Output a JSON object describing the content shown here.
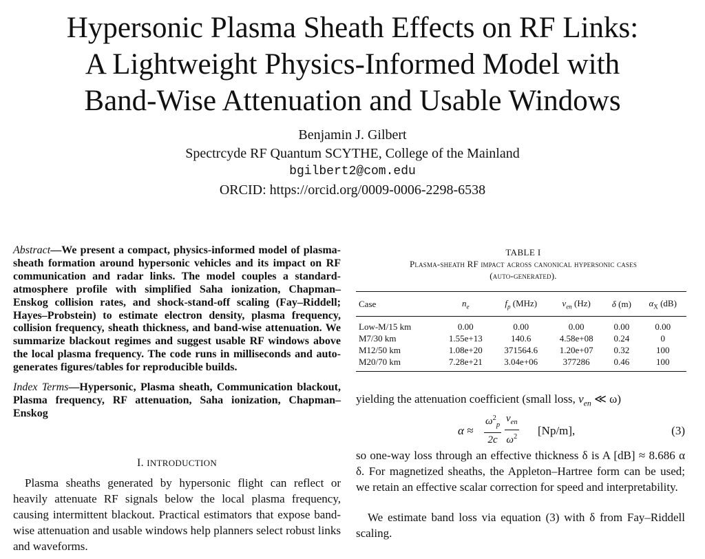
{
  "paper": {
    "title_lines": [
      "Hypersonic Plasma Sheath Effects on RF Links:",
      "A Lightweight Physics-Informed Model with",
      "Band-Wise Attenuation and Usable Windows"
    ],
    "author": "Benjamin J. Gilbert",
    "affiliation": "Spectrcyde RF Quantum SCYTHE, College of the Mainland",
    "email": "bgilbert2@com.edu",
    "orcid": "ORCID: https://orcid.org/0009-0006-2298-6538"
  },
  "abstract": {
    "lead": "Abstract",
    "text": "—We present a compact, physics-informed model of plasma-sheath formation around hypersonic vehicles and its impact on RF communication and radar links. The model couples a standard-atmosphere profile with simplified Saha ionization, Chapman–Enskog collision rates, and shock-stand-off scaling (Fay–Riddell; Hayes–Probstein) to estimate electron density, plasma frequency, collision frequency, sheath thickness, and band-wise attenuation. We summarize blackout regimes and suggest usable RF windows above the local plasma frequency. The code runs in milliseconds and auto-generates figures/tables for reproducible builds."
  },
  "index_terms": {
    "lead": "Index Terms",
    "text": "—Hypersonic, Plasma sheath, Communication blackout, Plasma frequency, RF attenuation, Saha ionization, Chapman–Enskog"
  },
  "section1": {
    "numeral": "I. ",
    "title": "Introduction",
    "text": "Plasma sheaths generated by hypersonic flight can reflect or heavily attenuate RF signals below the local plasma frequency, causing intermittent blackout. Practical estimators that expose band-wise attenuation and usable windows help planners select robust links and waveforms."
  },
  "table": {
    "label": "TABLE I",
    "caption_line1": "Plasma-sheath RF impact across canonical hypersonic cases",
    "caption_line2": "(auto-generated).",
    "headers": {
      "case": "Case",
      "ne": "n",
      "ne_sub": "e",
      "fp": "f",
      "fp_sub": "p",
      "fp_unit": " (MHz)",
      "nu": "ν",
      "nu_sub": "en",
      "nu_unit": " (Hz)",
      "delta": "δ",
      "delta_unit": " (m)",
      "alpha": "α",
      "alpha_sub": "X",
      "alpha_unit": " (dB)"
    },
    "rows": [
      [
        "Low-M/15 km",
        "0.00",
        "0.00",
        "0.00",
        "0.00",
        "0.00"
      ],
      [
        "M7/30 km",
        "1.55e+13",
        "140.6",
        "4.58e+08",
        "0.24",
        "0"
      ],
      [
        "M12/50 km",
        "1.08e+20",
        "371564.6",
        "1.20e+07",
        "0.32",
        "100"
      ],
      [
        "M20/70 km",
        "7.28e+21",
        "3.04e+06",
        "377286",
        "0.46",
        "100"
      ]
    ]
  },
  "right_column": {
    "p1_text": "yielding the attenuation coefficient (small loss, ",
    "p1_nu": "ν",
    "p1_nu_sub": "en",
    "p1_rel": " ≪ ω)",
    "eq_lhs": "α ≈",
    "eq_num_a": "ω",
    "eq_num_a_sup": "2",
    "eq_num_a_sub": "p",
    "eq_den_a": "2c",
    "eq_num_b": "ν",
    "eq_num_b_sub": "en",
    "eq_den_b": "ω",
    "eq_den_b_sup": "2",
    "eq_unit": "[Np/m],",
    "eq_number": "(3)",
    "p2_text": "so one-way loss through an effective thickness δ is A [dB] ≈ 8.686 α δ. For magnetized sheaths, the Appleton–Hartree form can be used; we retain an effective scalar correction for speed and interpretability.",
    "p3_text": "We estimate band loss via equation (3) with δ from Fay–Riddell scaling."
  }
}
